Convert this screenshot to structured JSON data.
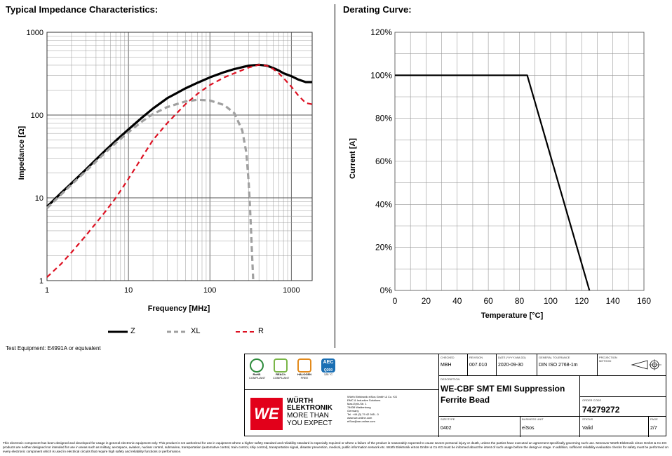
{
  "impedance": {
    "section_title": "Typical Impedance Characteristics:",
    "xlabel": "Frequency [MHz]",
    "ylabel": "Impedance [Ω]",
    "x_ticks": [
      "1",
      "10",
      "100",
      "1000"
    ],
    "y_ticks": [
      "1000",
      "100",
      "10",
      "1"
    ],
    "legend": [
      "Z",
      "XL",
      "R"
    ],
    "test_equipment": "Test Equipment: E4991A or equivalent"
  },
  "derating": {
    "section_title": "Derating Curve:",
    "xlabel": "Temperature [°C]",
    "ylabel": "Current [A]",
    "x_ticks": [
      "0",
      "20",
      "40",
      "60",
      "80",
      "100",
      "120",
      "140",
      "160"
    ],
    "y_ticks": [
      "120%",
      "100%",
      "80%",
      "60%",
      "40%",
      "20%",
      "0%"
    ]
  },
  "chart_data": [
    {
      "type": "line",
      "title": "Typical Impedance Characteristics:",
      "xlabel": "Frequency [MHz]",
      "ylabel": "Impedance [Ω]",
      "xscale": "log",
      "yscale": "log",
      "xlim": [
        1,
        1800
      ],
      "ylim": [
        1,
        1000
      ],
      "grid": true,
      "legend_position": "bottom",
      "series": [
        {
          "name": "Z",
          "color": "#000000",
          "style": "solid",
          "x": [
            1,
            1.5,
            2,
            3,
            5,
            7,
            10,
            15,
            20,
            30,
            50,
            70,
            100,
            150,
            200,
            300,
            400,
            500,
            600,
            700,
            800,
            1000,
            1200,
            1500,
            1800
          ],
          "y": [
            7.8,
            11.5,
            15,
            22,
            36,
            49,
            67,
            95,
            120,
            160,
            210,
            245,
            285,
            330,
            360,
            395,
            405,
            395,
            370,
            345,
            320,
            295,
            270,
            250,
            250
          ]
        },
        {
          "name": "XL",
          "color": "#a0a0a0",
          "style": "dashed",
          "x": [
            1,
            1.5,
            2,
            3,
            5,
            7,
            10,
            15,
            20,
            30,
            50,
            70,
            100,
            150,
            200,
            250,
            280,
            300,
            310,
            320,
            330,
            340
          ],
          "y": [
            7.5,
            11,
            14.5,
            21,
            34,
            46,
            62,
            85,
            103,
            125,
            146,
            153,
            150,
            132,
            105,
            65,
            35,
            15,
            8,
            4,
            2,
            1
          ]
        },
        {
          "name": "R",
          "color": "#dd1122",
          "style": "dashed",
          "x": [
            1,
            1.5,
            2,
            3,
            5,
            7,
            10,
            15,
            20,
            30,
            50,
            70,
            100,
            150,
            200,
            300,
            400,
            500,
            600,
            700,
            800,
            1000,
            1200,
            1500,
            1800
          ],
          "y": [
            1.1,
            1.6,
            2.2,
            3.5,
            6.5,
            10,
            17,
            32,
            50,
            80,
            135,
            180,
            230,
            285,
            320,
            375,
            405,
            395,
            360,
            320,
            280,
            220,
            175,
            140,
            135
          ]
        }
      ]
    },
    {
      "type": "line",
      "title": "Derating Curve:",
      "xlabel": "Temperature [°C]",
      "ylabel": "Current [A]",
      "xlim": [
        0,
        160
      ],
      "ylim": [
        0,
        120
      ],
      "grid": true,
      "series": [
        {
          "color": "#000000",
          "x": [
            0,
            85,
            125
          ],
          "y": [
            100,
            100,
            0
          ]
        }
      ]
    }
  ],
  "title_block": {
    "badges": [
      {
        "name": "RoHS",
        "sub": "COMPLIANT",
        "color": "#2e8b3c"
      },
      {
        "name": "REACh",
        "sub": "COMPLIANT",
        "color": "#7ab648"
      },
      {
        "name": "HALOGEN",
        "sub": "FREE",
        "color": "#e38a1b"
      },
      {
        "name": "AEC",
        "sub": "Q200",
        "extra": "125 °C",
        "color": "#1a6fb4"
      }
    ],
    "logo": {
      "line1": "WÜRTH",
      "line2": "ELEKTRONIK",
      "line3": "MORE THAN",
      "line4": "YOU EXPECT"
    },
    "address": [
      "Würth Elektronik eiSos GmbH & Co. KG",
      "EMC & Inductive Solutions",
      "Max-Eyth-Str. 1",
      "74638 Waldenburg",
      "Germany",
      "Tel. +49 (0) 79 42 945 - 0",
      "www.we-online.com",
      "eiSos@we-online.com"
    ],
    "checked_label": "CHECKED",
    "checked": "MBH",
    "revision_label": "REVISION",
    "revision": "007.010",
    "date_label": "DATE (YYYY-MM-DD)",
    "date": "2020-09-30",
    "tolerance_label": "GENERAL TOLERANCE",
    "tolerance": "DIN ISO 2768-1m",
    "projection_label": "PROJECTION METHOD",
    "description_label": "DESCRIPTION",
    "description_1": "WE-CBF SMT EMI Suppression",
    "description_2": "Ferrite Bead",
    "order_label": "ORDER CODE",
    "order_code": "74279272",
    "size_label": "SIZE/TYPE",
    "size": "0402",
    "business_label": "BUSINESS UNIT",
    "business": "eiSos",
    "status_label": "STATUS",
    "status": "Valid",
    "page_label": "PAGE",
    "page": "2/7"
  },
  "disclaimer": "This electronic component has been designed and developed for usage in general electronic equipment only. This product is not authorized for use in equipment where a higher safety standard and reliability standard is especially required or where a failure of the product is reasonably expected to cause severe personal injury or death, unless the parties have executed an agreement specifically governing such use. Moreover Würth Elektronik eiSos GmbH & Co KG products are neither designed nor intended for use in areas such as military, aerospace, aviation, nuclear control, submarine, transportation (automotive control, train control, ship control), transportation signal, disaster prevention, medical, public information network etc. Würth Elektronik eiSos GmbH & Co KG must be informed about the intent of such usage before the design-in stage. In addition, sufficient reliability evaluation checks for safety must be performed on every electronic component which is used in electrical circuits that require high safety and reliability functions or performance."
}
